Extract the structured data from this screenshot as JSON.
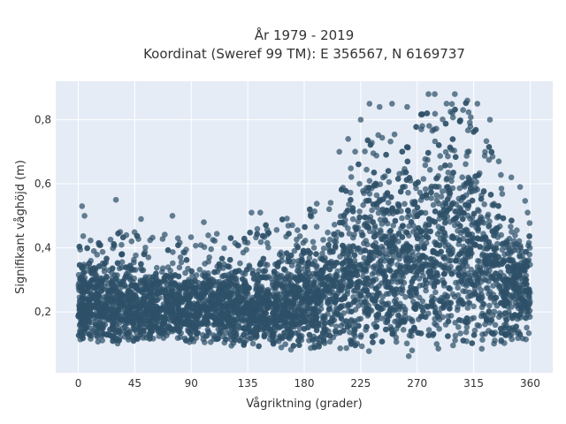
{
  "chart_data": {
    "type": "scatter",
    "title": "År 1979 - 2019",
    "subtitle": "Koordinat (Sweref 99 TM): E 356567, N 6169737",
    "xlabel": "Vågriktning (grader)",
    "ylabel": "Signifikant våghöjd (m)",
    "xlim": [
      -18,
      378
    ],
    "ylim": [
      0.01,
      0.92
    ],
    "x_ticks": [
      0,
      45,
      90,
      135,
      180,
      225,
      270,
      315,
      360
    ],
    "x_tick_labels": [
      "0",
      "45",
      "90",
      "135",
      "180",
      "225",
      "270",
      "315",
      "360"
    ],
    "y_ticks": [
      0.2,
      0.4,
      0.6,
      0.8
    ],
    "y_tick_labels": [
      "0,2",
      "0,4",
      "0,6",
      "0,8"
    ],
    "grid": true,
    "legend": "none",
    "colors": {
      "marker": "#2e5068",
      "plot_bg": "#e5ecf6",
      "grid": "#ffffff"
    },
    "density_envelope": {
      "x": [
        0,
        20,
        45,
        90,
        135,
        160,
        180,
        200,
        210,
        220,
        230,
        240,
        250,
        260,
        270,
        280,
        290,
        300,
        310,
        320,
        330,
        340,
        350,
        360
      ],
      "y_min": [
        0.1,
        0.09,
        0.09,
        0.1,
        0.09,
        0.08,
        0.08,
        0.08,
        0.08,
        0.08,
        0.07,
        0.07,
        0.07,
        0.06,
        0.06,
        0.06,
        0.05,
        0.05,
        0.07,
        0.08,
        0.09,
        0.09,
        0.1,
        0.1
      ],
      "y_max": [
        0.38,
        0.37,
        0.37,
        0.36,
        0.37,
        0.41,
        0.44,
        0.48,
        0.55,
        0.63,
        0.67,
        0.68,
        0.68,
        0.7,
        0.73,
        0.76,
        0.78,
        0.8,
        0.77,
        0.7,
        0.62,
        0.55,
        0.5,
        0.45
      ]
    },
    "notable_points": [
      {
        "x": 3,
        "y": 0.53
      },
      {
        "x": 5,
        "y": 0.5
      },
      {
        "x": 30,
        "y": 0.55
      },
      {
        "x": 50,
        "y": 0.49
      },
      {
        "x": 75,
        "y": 0.5
      },
      {
        "x": 100,
        "y": 0.48
      },
      {
        "x": 138,
        "y": 0.51
      },
      {
        "x": 145,
        "y": 0.51
      },
      {
        "x": 185,
        "y": 0.5
      },
      {
        "x": 208,
        "y": 0.7
      },
      {
        "x": 215,
        "y": 0.74
      },
      {
        "x": 225,
        "y": 0.8
      },
      {
        "x": 232,
        "y": 0.85
      },
      {
        "x": 240,
        "y": 0.84
      },
      {
        "x": 250,
        "y": 0.85
      },
      {
        "x": 262,
        "y": 0.84
      },
      {
        "x": 279,
        "y": 0.88
      },
      {
        "x": 284,
        "y": 0.88
      },
      {
        "x": 300,
        "y": 0.88
      },
      {
        "x": 310,
        "y": 0.86
      },
      {
        "x": 318,
        "y": 0.85
      },
      {
        "x": 328,
        "y": 0.8
      },
      {
        "x": 335,
        "y": 0.67
      },
      {
        "x": 345,
        "y": 0.62
      },
      {
        "x": 352,
        "y": 0.59
      },
      {
        "x": 358,
        "y": 0.51
      }
    ]
  }
}
